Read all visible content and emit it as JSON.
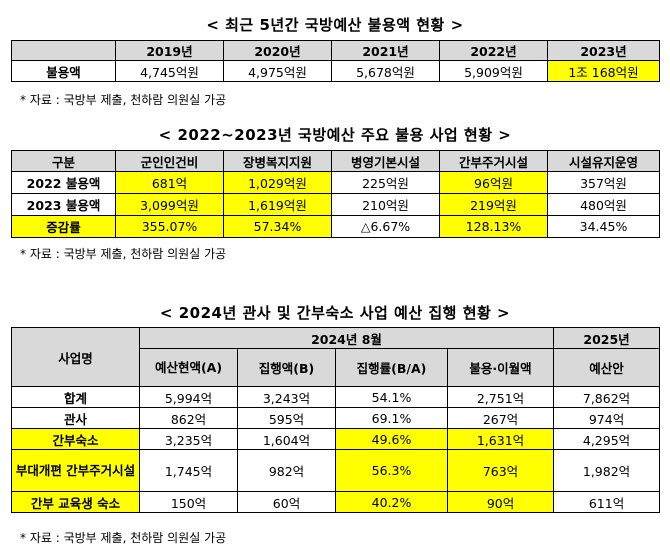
{
  "section1": {
    "title": "< 최근 5년간 국방예산 불용액 현황 >",
    "years": [
      "2019년",
      "2020년",
      "2021년",
      "2022년",
      "2023년"
    ],
    "row_label": "불용액",
    "values": [
      "4,745억원",
      "4,975억원",
      "5,678억원",
      "5,909억원",
      "1조 168억원"
    ],
    "highlight_last": true,
    "note": "* 자료 : 국방부 제출, 천하람 의원실 가공"
  },
  "section2": {
    "title": "< 2022~2023년 국방예산 주요 불용 사업 현황 >",
    "headers": [
      "구분",
      "군인인건비",
      "장병복지지원",
      "병영기본시설",
      "간부주거시설",
      "시설유지운영"
    ],
    "rows": [
      {
        "label": "2022 불용액",
        "cells": [
          "681억",
          "1,029억원",
          "225억원",
          "96억원",
          "357억원"
        ]
      },
      {
        "label": "2023 불용액",
        "cells": [
          "3,099억원",
          "1,619억원",
          "210억원",
          "219억원",
          "480억원"
        ]
      },
      {
        "label": "증감률",
        "cells": [
          "355.07%",
          "57.34%",
          "△6.67%",
          "128.13%",
          "34.45%"
        ]
      }
    ],
    "note": "* 자료 : 국방부 제출, 천하람 의원실 가공"
  },
  "section3": {
    "title": "< 2024년 관사 및 간부숙소 사업 예산 집행 현황 >",
    "group_header_2024": "2024년 8월",
    "group_header_2025": "2025년",
    "name_header": "사업명",
    "sub_headers": [
      "예산현액(A)",
      "집행액(B)",
      "집행률(B/A)",
      "불용·이월액",
      "예산안"
    ],
    "rows": [
      {
        "label": "합계",
        "cells": [
          "5,994억",
          "3,243억",
          "54.1%",
          "2,751억",
          "7,862억"
        ]
      },
      {
        "label": "관사",
        "cells": [
          "862억",
          "595억",
          "69.1%",
          "267억",
          "974억"
        ]
      },
      {
        "label": "간부숙소",
        "cells": [
          "3,235억",
          "1,604억",
          "49.6%",
          "1,631억",
          "4,295억"
        ]
      },
      {
        "label": "부대개편 간부주거시설",
        "cells": [
          "1,745억",
          "982억",
          "56.3%",
          "763억",
          "1,982억"
        ]
      },
      {
        "label": "간부 교육생 숙소",
        "cells": [
          "150억",
          "60억",
          "40.2%",
          "90억",
          "611억"
        ]
      }
    ],
    "note": "* 자료 : 국방부 제출, 천하람 의원실 가공"
  },
  "colors": {
    "highlight": "#ffff00",
    "header_bg": "#d9d9d9"
  }
}
